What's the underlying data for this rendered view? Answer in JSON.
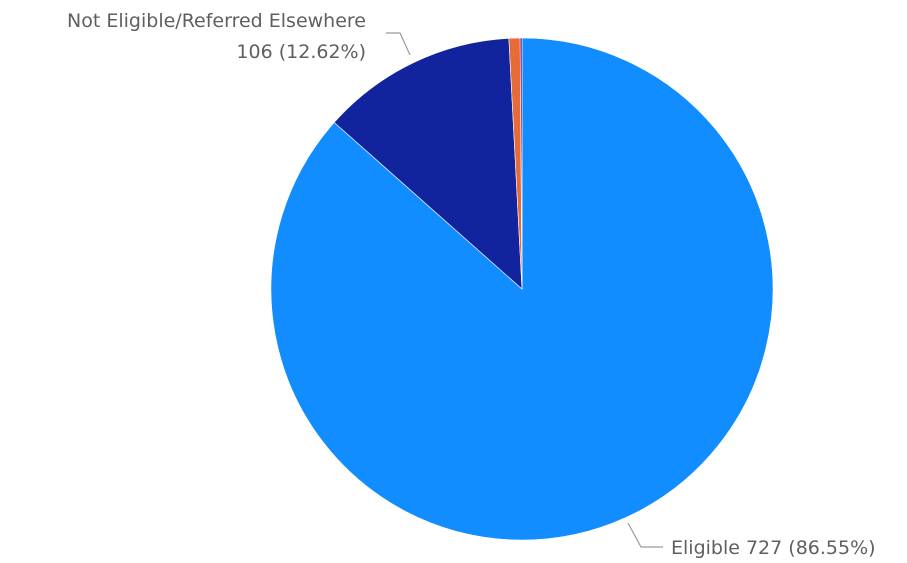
{
  "chart_data": {
    "type": "pie",
    "title": "",
    "slices": [
      {
        "name": "Eligible",
        "value": 727,
        "percent": "86.55%",
        "color": "#118dff",
        "label": {
          "line1": "Eligible 727 (86.55%)",
          "line2": ""
        }
      },
      {
        "name": "Not Eligible/Referred Elsewhere",
        "value": 106,
        "percent": "12.62%",
        "color": "#12239e",
        "label": {
          "line1": "Not Eligible/Referred Elsewhere",
          "line2": "106 (12.62%)"
        }
      },
      {
        "value": 6,
        "color": "#e66c37",
        "label": null
      },
      {
        "value": 1,
        "color": "#6b007b",
        "label": null
      }
    ],
    "start_angle": "12 o'clock",
    "direction": "clockwise",
    "legend": "none"
  }
}
